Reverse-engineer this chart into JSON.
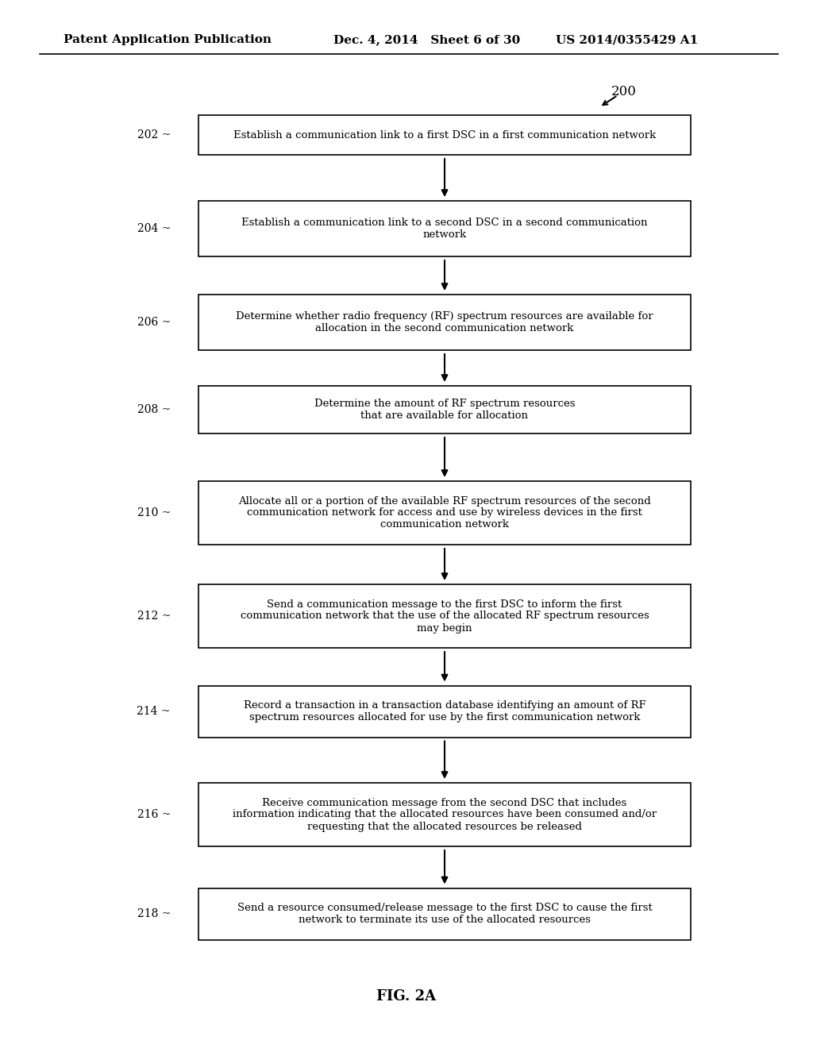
{
  "bg_color": "#ffffff",
  "header_left": "Patent Application Publication",
  "header_mid": "Dec. 4, 2014   Sheet 6 of 30",
  "header_right": "US 2014/0355429 A1",
  "fig_label": "200",
  "caption": "FIG. 2A",
  "boxes": [
    {
      "id": "202",
      "label": "Establish a communication link to a first DSC in a first communication network",
      "lines": [
        "Establish a communication link to a first DSC in a first communication network"
      ]
    },
    {
      "id": "204",
      "label": "Establish a communication link to a second DSC in a second communication\nnetwork",
      "lines": [
        "Establish a communication link to a second DSC in a second communication",
        "network"
      ]
    },
    {
      "id": "206",
      "label": "Determine whether radio frequency (RF) spectrum resources are available for\nallocation in the second communication network",
      "lines": [
        "Determine whether radio frequency (RF) spectrum resources are available for",
        "allocation in the second communication network"
      ]
    },
    {
      "id": "208",
      "label": "Determine the amount of RF spectrum resources\nthat are available for allocation",
      "lines": [
        "Determine the amount of RF spectrum resources",
        "that are available for allocation"
      ]
    },
    {
      "id": "210",
      "label": "Allocate all or a portion of the available RF spectrum resources of the second\ncommunication network for access and use by wireless devices in the first\ncommunication network",
      "lines": [
        "Allocate all or a portion of the available RF spectrum resources of the second",
        "communication network for access and use by wireless devices in the first",
        "communication network"
      ]
    },
    {
      "id": "212",
      "label": "Send a communication message to the first DSC to inform the first\ncommunication network that the use of the allocated RF spectrum resources\nmay begin",
      "lines": [
        "Send a communication message to the first DSC to inform the first",
        "communication network that the use of the allocated RF spectrum resources",
        "may begin"
      ]
    },
    {
      "id": "214",
      "label": "Record a transaction in a transaction database identifying an amount of RF\nspectrum resources allocated for use by the first communication network",
      "lines": [
        "Record a transaction in a transaction database identifying an amount of RF",
        "spectrum resources allocated for use by the first communication network"
      ]
    },
    {
      "id": "216",
      "label": "Receive communication message from the second DSC that includes\ninformation indicating that the allocated resources have been consumed and/or\nrequesting that the allocated resources be released",
      "lines": [
        "Receive communication message from the second DSC that includes",
        "information indicating that the allocated resources have been consumed and/or",
        "requesting that the allocated resources be released"
      ]
    },
    {
      "id": "218",
      "label": "Send a resource consumed/release message to the first DSC to cause the first\nnetwork to terminate its use of the allocated resources",
      "lines": [
        "Send a resource consumed/release message to the first DSC to cause the first",
        "network to terminate its use of the allocated resources"
      ]
    }
  ]
}
